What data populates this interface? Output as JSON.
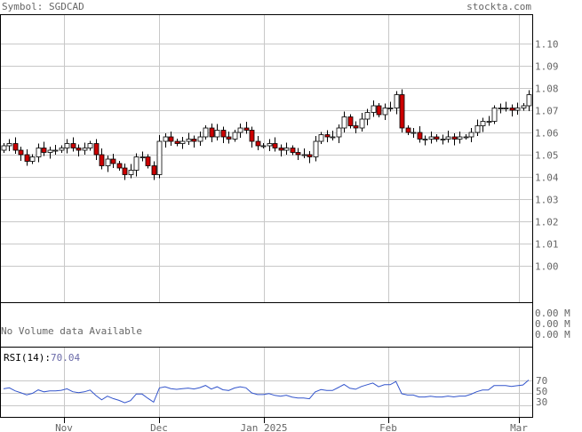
{
  "header": {
    "symbol_label": "Symbol: SGDCAD",
    "brand": "stockta.com"
  },
  "volume_panel": {
    "message": "No Volume data Available",
    "axis_labels": [
      "0.00 M",
      "0.00 M",
      "0.00 M"
    ]
  },
  "rsi_panel": {
    "label": "RSI(14):",
    "value": "70.04",
    "axis_labels": [
      "70",
      "50",
      "30"
    ],
    "ylim": [
      0,
      100
    ]
  },
  "colors": {
    "up": "#ffffff",
    "down": "#cc0000",
    "outline": "#000000",
    "grid": "#c8c8c8",
    "rsi_line": "#3355cc",
    "text": "#666666"
  },
  "chart_data": [
    {
      "type": "candlestick",
      "title": "Symbol: SGDCAD",
      "ylim": [
        0.99,
        1.11
      ],
      "y_ticks": [
        "1.10",
        "1.09",
        "1.08",
        "1.07",
        "1.06",
        "1.05",
        "1.04",
        "1.03",
        "1.02",
        "1.01",
        "1.00"
      ],
      "x_ticks": [
        "Nov",
        "Dec",
        "Jan 2025",
        "Feb",
        "Mar"
      ],
      "grid": true,
      "series": [
        {
          "close": [
            1.054,
            1.055,
            1.052,
            1.05,
            1.047,
            1.049,
            1.053,
            1.051,
            1.052,
            1.052,
            1.053,
            1.055,
            1.053,
            1.052,
            1.053,
            1.055,
            1.05,
            1.045,
            1.048,
            1.046,
            1.044,
            1.041,
            1.043,
            1.049,
            1.049,
            1.045,
            1.041,
            1.056,
            1.058,
            1.056,
            1.055,
            1.056,
            1.057,
            1.056,
            1.058,
            1.062,
            1.058,
            1.061,
            1.058,
            1.057,
            1.06,
            1.062,
            1.061,
            1.056,
            1.054,
            1.054,
            1.055,
            1.053,
            1.052,
            1.053,
            1.051,
            1.05,
            1.05,
            1.049,
            1.056,
            1.059,
            1.058,
            1.058,
            1.062,
            1.067,
            1.063,
            1.062,
            1.066,
            1.069,
            1.072,
            1.068,
            1.071,
            1.071,
            1.077,
            1.062,
            1.06,
            1.06,
            1.057,
            1.057,
            1.058,
            1.057,
            1.057,
            1.058,
            1.057,
            1.058,
            1.058,
            1.06,
            1.063,
            1.065,
            1.065,
            1.071,
            1.071,
            1.071,
            1.07,
            1.071,
            1.072,
            1.077
          ]
        }
      ]
    },
    {
      "type": "line",
      "title": "RSI(14)",
      "ylim": [
        0,
        100
      ],
      "series": [
        {
          "name": "RSI(14)",
          "values": [
            55.9,
            57.5,
            52.6,
            49.5,
            46.1,
            48.6,
            54.1,
            51.0,
            52.4,
            52.4,
            53.4,
            55.8,
            51.1,
            49.7,
            51.0,
            53.8,
            45.2,
            38.2,
            44.0,
            40.1,
            37.3,
            33.5,
            36.9,
            47.6,
            47.4,
            40.6,
            34.5,
            57.3,
            59.1,
            56.2,
            55.0,
            56.2,
            57.0,
            55.6,
            57.7,
            61.3,
            55.4,
            59.2,
            54.3,
            53.2,
            57.1,
            59.1,
            57.4,
            49.3,
            46.5,
            46.5,
            48.1,
            45.3,
            44.0,
            45.5,
            42.6,
            41.2,
            41.2,
            39.8,
            50.8,
            54.6,
            53.1,
            53.1,
            57.9,
            62.9,
            56.7,
            55.2,
            59.6,
            62.5,
            65.2,
            59.2,
            62.5,
            62.5,
            67.6,
            48.0,
            45.8,
            45.8,
            42.7,
            42.7,
            44.0,
            42.7,
            42.7,
            44.1,
            42.8,
            44.2,
            44.2,
            47.1,
            51.2,
            53.9,
            53.9,
            61.0,
            61.0,
            61.0,
            59.6,
            60.8,
            62.0,
            70.04
          ]
        }
      ]
    }
  ]
}
